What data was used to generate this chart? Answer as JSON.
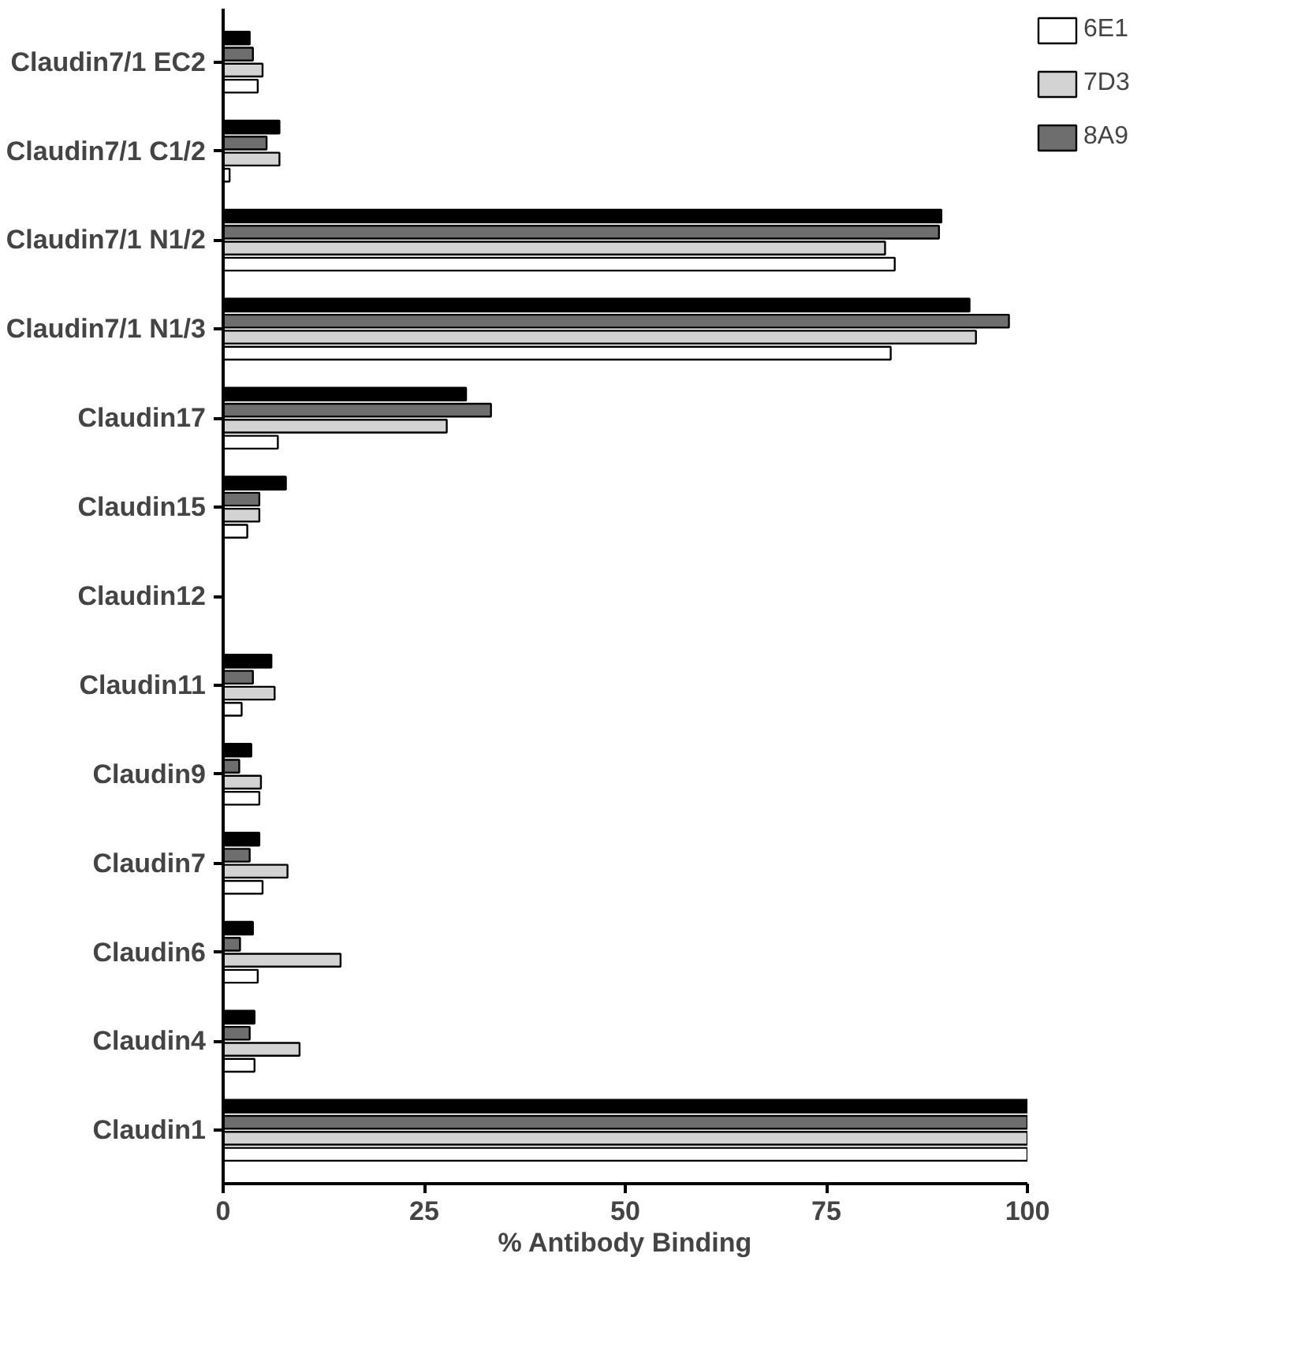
{
  "chart_data": {
    "type": "bar",
    "orientation": "horizontal",
    "xlabel": "% Antibody Binding",
    "categories": [
      "Claudin7/1 EC2",
      "Claudin7/1 C1/2",
      "Claudin7/1 N1/2",
      "Claudin7/1 N1/3",
      "Claudin17",
      "Claudin15",
      "Claudin12",
      "Claudin11",
      "Claudin9",
      "Claudin7",
      "Claudin6",
      "Claudin4",
      "Claudin1"
    ],
    "series": [
      {
        "name": "6E1",
        "color": "#ffffff",
        "values": [
          4.3,
          0.8,
          83.5,
          83,
          6.8,
          3,
          null,
          2.3,
          4.5,
          4.9,
          4.3,
          3.9,
          100
        ]
      },
      {
        "name": "7D3",
        "color": "#d3d3d3",
        "values": [
          4.9,
          7,
          82.3,
          93.6,
          27.8,
          4.5,
          null,
          6.4,
          4.7,
          8,
          14.6,
          9.5,
          100
        ]
      },
      {
        "name": "8A9",
        "color": "#6e6e6e",
        "values": [
          3.7,
          5.4,
          89,
          97.7,
          33.3,
          4.5,
          null,
          3.7,
          2,
          3.3,
          2.1,
          3.3,
          100
        ]
      },
      {
        "color": "#000000",
        "values": [
          3.3,
          7,
          89.3,
          92.8,
          30.2,
          7.8,
          null,
          6,
          3.5,
          4.5,
          3.7,
          3.9,
          100
        ]
      }
    ],
    "xlim": [
      0,
      100
    ],
    "xticks": [
      0,
      25,
      50,
      75,
      100
    ],
    "grid": false,
    "legend": "top right"
  }
}
